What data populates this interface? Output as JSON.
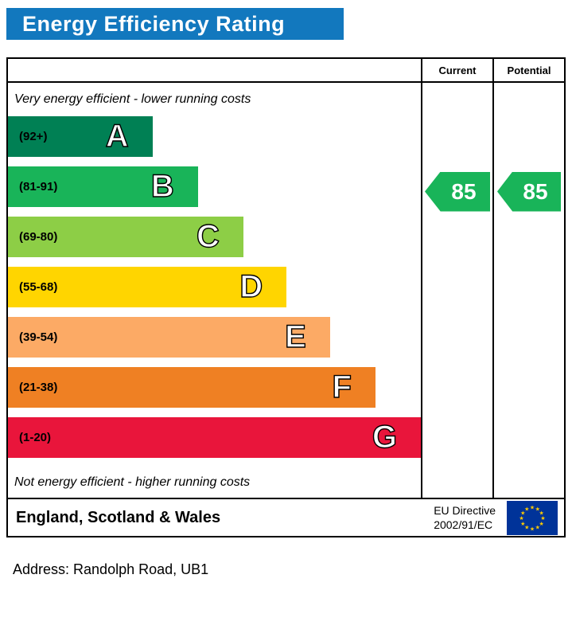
{
  "title": "Energy Efficiency Rating",
  "chart_data": {
    "type": "bar",
    "title": "Energy Efficiency Rating",
    "columns": {
      "current": "Current",
      "potential": "Potential"
    },
    "top_note": "Very energy efficient - lower running costs",
    "bottom_note": "Not energy efficient - higher running costs",
    "bands": [
      {
        "letter": "A",
        "range_label": "(92+)",
        "range": [
          92,
          100
        ],
        "color": "#008054",
        "width_pct": 35
      },
      {
        "letter": "B",
        "range_label": "(81-91)",
        "range": [
          81,
          91
        ],
        "color": "#19b459",
        "width_pct": 46
      },
      {
        "letter": "C",
        "range_label": "(69-80)",
        "range": [
          69,
          80
        ],
        "color": "#8dce46",
        "width_pct": 57
      },
      {
        "letter": "D",
        "range_label": "(55-68)",
        "range": [
          55,
          68
        ],
        "color": "#ffd500",
        "width_pct": 67.5
      },
      {
        "letter": "E",
        "range_label": "(39-54)",
        "range": [
          39,
          54
        ],
        "color": "#fcaa65",
        "width_pct": 78
      },
      {
        "letter": "F",
        "range_label": "(21-38)",
        "range": [
          21,
          38
        ],
        "color": "#ef8023",
        "width_pct": 89
      },
      {
        "letter": "G",
        "range_label": "(1-20)",
        "range": [
          1,
          20
        ],
        "color": "#e9153b",
        "width_pct": 100
      }
    ],
    "current": {
      "value": 85,
      "band": "B",
      "band_index": 1,
      "color": "#19b459"
    },
    "potential": {
      "value": 85,
      "band": "B",
      "band_index": 1,
      "color": "#19b459"
    }
  },
  "header_bar_color": "#1278be",
  "footer": {
    "region": "England, Scotland & Wales",
    "directive_line1": "EU Directive",
    "directive_line2": "2002/91/EC",
    "flag_blue": "#003399",
    "flag_star_color": "#ffcc00"
  },
  "address_line": "Address: Randolph Road, UB1"
}
